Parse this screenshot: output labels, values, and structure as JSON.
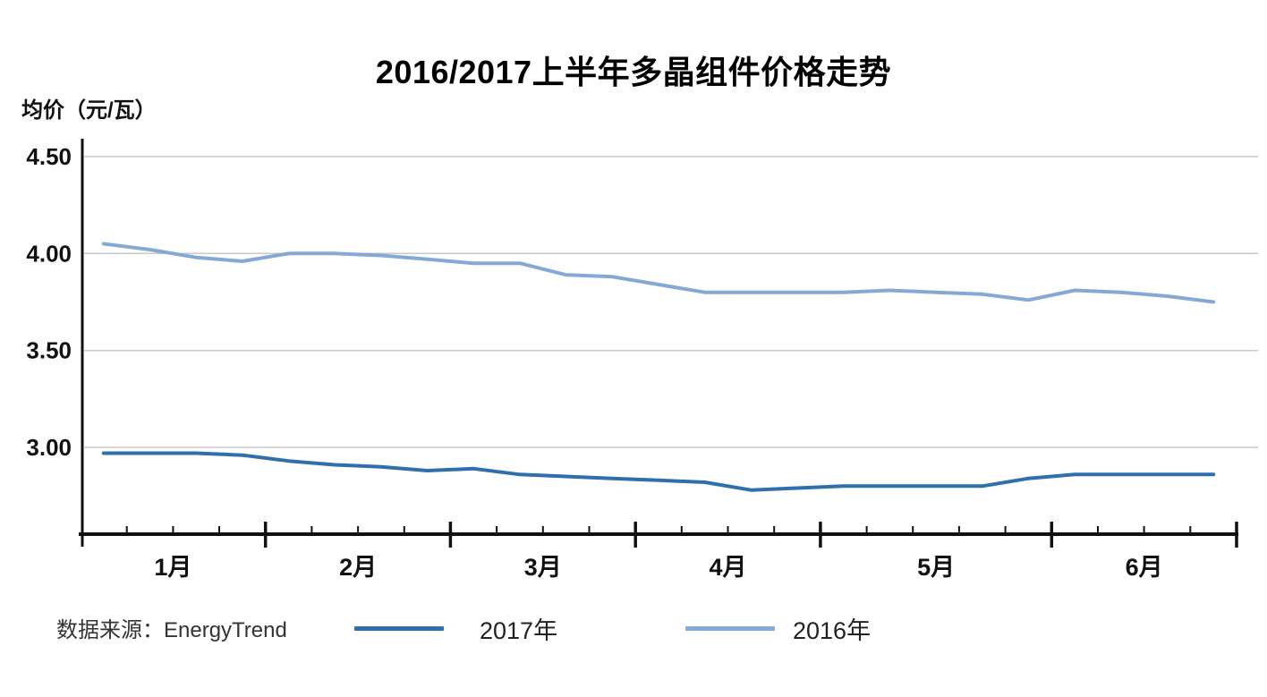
{
  "title": "2016/2017上半年多晶组件价格走势",
  "source_note": "数据来源：EnergyTrend",
  "chart_data": {
    "type": "line",
    "title": "2016/2017上半年多晶组件价格走势",
    "y_axis_title": "均价（元/瓦）",
    "unit": "元/瓦",
    "ylim": [
      2.55,
      4.5
    ],
    "grid": "horizontal-only",
    "legend_position": "bottom",
    "gridline_color": "#c9c9c9",
    "axis_color": "#111111",
    "y_ticks": [
      {
        "label": "4.50",
        "value": 4.5
      },
      {
        "label": "4.00",
        "value": 4.0
      },
      {
        "label": "3.50",
        "value": 3.5
      },
      {
        "label": "3.00",
        "value": 3.0
      }
    ],
    "x_months": [
      {
        "label": "1月",
        "weeks": 4
      },
      {
        "label": "2月",
        "weeks": 4
      },
      {
        "label": "3月",
        "weeks": 4
      },
      {
        "label": "4月",
        "weeks": 4
      },
      {
        "label": "5月",
        "weeks": 5
      },
      {
        "label": "6月",
        "weeks": 4
      }
    ],
    "x_note": "weekly data points, one per week of each month",
    "series": [
      {
        "name": "2017年",
        "color": "#2e6fae",
        "values": [
          2.97,
          2.97,
          2.97,
          2.96,
          2.93,
          2.91,
          2.9,
          2.88,
          2.89,
          2.86,
          2.85,
          2.84,
          2.83,
          2.82,
          2.78,
          2.79,
          2.8,
          2.8,
          2.8,
          2.8,
          2.84,
          2.86,
          2.86,
          2.86,
          2.86
        ]
      },
      {
        "name": "2016年",
        "color": "#85a9d6",
        "values": [
          4.05,
          4.02,
          3.98,
          3.96,
          4.0,
          4.0,
          3.99,
          3.97,
          3.95,
          3.95,
          3.89,
          3.88,
          3.84,
          3.8,
          3.8,
          3.8,
          3.8,
          3.81,
          3.8,
          3.79,
          3.76,
          3.81,
          3.8,
          3.78,
          3.75
        ]
      }
    ]
  }
}
